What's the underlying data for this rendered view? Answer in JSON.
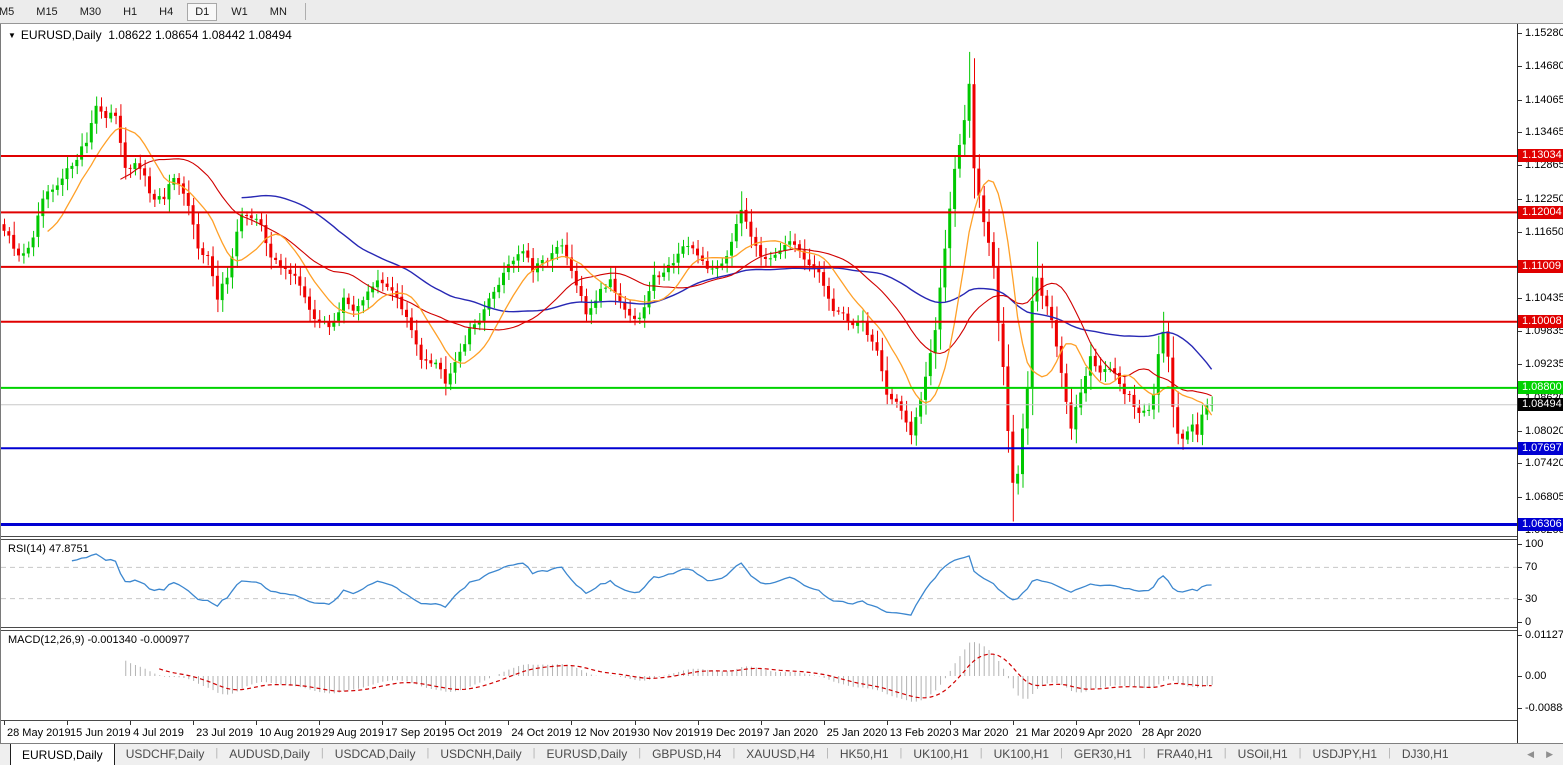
{
  "toolbar": {
    "timeframes": [
      {
        "label": "M5"
      },
      {
        "label": "M15"
      },
      {
        "label": "M30"
      },
      {
        "label": "H1"
      },
      {
        "label": "H4"
      },
      {
        "label": "D1"
      },
      {
        "label": "W1"
      },
      {
        "label": "MN"
      }
    ],
    "active_timeframe": "D1"
  },
  "chart": {
    "title": {
      "dropdown_icon": "▼",
      "symbol": "EURUSD,Daily",
      "ohlc_text": "1.08622 1.08654 1.08442 1.08494"
    },
    "indicators": {
      "rsi_label": "RSI(14) 47.8751",
      "macd_label": "MACD(12,26,9) -0.001340 -0.000977"
    }
  },
  "chart_data": {
    "type": "candlestick",
    "symbol": "EURUSD",
    "timeframe": "Daily",
    "ohlc_display": {
      "open": 1.08622,
      "high": 1.08654,
      "low": 1.08442,
      "close": 1.08494
    },
    "n_candles": 250,
    "ylim": [
      1.06096,
      1.15444
    ],
    "close_anchors": [
      [
        0,
        1.1167
      ],
      [
        3,
        1.1118
      ],
      [
        6,
        1.115
      ],
      [
        8,
        1.1225
      ],
      [
        11,
        1.1245
      ],
      [
        14,
        1.129
      ],
      [
        17,
        1.133
      ],
      [
        19,
        1.14
      ],
      [
        21,
        1.137
      ],
      [
        23,
        1.138
      ],
      [
        25,
        1.1285
      ],
      [
        28,
        1.1282
      ],
      [
        31,
        1.1218
      ],
      [
        33,
        1.123
      ],
      [
        35,
        1.1262
      ],
      [
        38,
        1.121
      ],
      [
        40,
        1.114
      ],
      [
        42,
        1.112
      ],
      [
        44,
        1.104
      ],
      [
        46,
        1.1088
      ],
      [
        49,
        1.12
      ],
      [
        51,
        1.1185
      ],
      [
        53,
        1.118
      ],
      [
        55,
        1.112
      ],
      [
        57,
        1.1098
      ],
      [
        60,
        1.109
      ],
      [
        62,
        1.104
      ],
      [
        64,
        1.1008
      ],
      [
        67,
        1.0992
      ],
      [
        70,
        1.1038
      ],
      [
        72,
        1.1025
      ],
      [
        74,
        1.1042
      ],
      [
        77,
        1.1072
      ],
      [
        80,
        1.1062
      ],
      [
        83,
        1.1005
      ],
      [
        86,
        1.0938
      ],
      [
        89,
        1.0928
      ],
      [
        91,
        1.0895
      ],
      [
        93,
        1.0932
      ],
      [
        96,
        1.0982
      ],
      [
        100,
        1.1038
      ],
      [
        104,
        1.1108
      ],
      [
        107,
        1.1132
      ],
      [
        109,
        1.1092
      ],
      [
        112,
        1.1118
      ],
      [
        115,
        1.1138
      ],
      [
        118,
        1.1068
      ],
      [
        120,
        1.1015
      ],
      [
        123,
        1.1058
      ],
      [
        125,
        1.1078
      ],
      [
        128,
        1.1022
      ],
      [
        131,
        1.1002
      ],
      [
        134,
        1.1082
      ],
      [
        137,
        1.1102
      ],
      [
        140,
        1.1138
      ],
      [
        143,
        1.1122
      ],
      [
        146,
        1.1092
      ],
      [
        149,
        1.1122
      ],
      [
        152,
        1.1212
      ],
      [
        154,
        1.1162
      ],
      [
        157,
        1.1108
      ],
      [
        160,
        1.1138
      ],
      [
        162,
        1.1152
      ],
      [
        165,
        1.1108
      ],
      [
        168,
        1.1088
      ],
      [
        171,
        1.1022
      ],
      [
        174,
        1.1002
      ],
      [
        177,
        1.0998
      ],
      [
        180,
        1.0948
      ],
      [
        182,
        1.0872
      ],
      [
        185,
        1.0842
      ],
      [
        187,
        1.0792
      ],
      [
        189,
        1.0852
      ],
      [
        192,
        1.0992
      ],
      [
        194,
        1.1138
      ],
      [
        196,
        1.1282
      ],
      [
        198,
        1.1362
      ],
      [
        199,
        1.1438
      ],
      [
        200,
        1.1282
      ],
      [
        202,
        1.1188
      ],
      [
        204,
        1.1102
      ],
      [
        205,
        1.0998
      ],
      [
        206,
        1.0922
      ],
      [
        207,
        1.0802
      ],
      [
        208,
        1.0702
      ],
      [
        209,
        1.0722
      ],
      [
        210,
        1.0802
      ],
      [
        211,
        1.0882
      ],
      [
        212,
        1.1032
      ],
      [
        213,
        1.1082
      ],
      [
        214,
        1.1048
      ],
      [
        216,
        1.1002
      ],
      [
        217,
        1.0962
      ],
      [
        219,
        1.0862
      ],
      [
        220,
        1.0812
      ],
      [
        222,
        1.0872
      ],
      [
        224,
        1.0932
      ],
      [
        226,
        1.0912
      ],
      [
        228,
        1.0916
      ],
      [
        230,
        1.0882
      ],
      [
        232,
        1.0866
      ],
      [
        234,
        1.0832
      ],
      [
        236,
        1.0846
      ],
      [
        237,
        1.0872
      ],
      [
        238,
        1.0946
      ],
      [
        239,
        1.0982
      ],
      [
        240,
        1.0932
      ],
      [
        241,
        1.0842
      ],
      [
        242,
        1.0796
      ],
      [
        243,
        1.0786
      ],
      [
        244,
        1.0808
      ],
      [
        245,
        1.0818
      ],
      [
        246,
        1.08
      ],
      [
        247,
        1.0828
      ],
      [
        248,
        1.0846
      ],
      [
        249,
        1.08494
      ]
    ],
    "wick_overrides": [
      [
        19,
        "h",
        1.1412
      ],
      [
        91,
        "l",
        1.0879
      ],
      [
        152,
        "h",
        1.1239
      ],
      [
        187,
        "l",
        1.0777
      ],
      [
        199,
        "h",
        1.14935
      ],
      [
        208,
        "l",
        1.0636
      ],
      [
        213,
        "h",
        1.1147
      ],
      [
        239,
        "h",
        1.1019
      ],
      [
        243,
        "l",
        1.0767
      ]
    ],
    "ma_periods": {
      "fast": 10,
      "mid": 25,
      "slow": 50
    },
    "hlines": [
      {
        "price": 1.13034,
        "label": "1.13034",
        "color": "#e00000",
        "width": 2
      },
      {
        "price": 1.12004,
        "label": "1.12004",
        "color": "#e00000",
        "width": 2
      },
      {
        "price": 1.11009,
        "label": "1.11009",
        "color": "#e00000",
        "width": 2
      },
      {
        "price": 1.10008,
        "label": "1.10008",
        "color": "#e00000",
        "width": 2
      },
      {
        "price": 1.088,
        "label": "1.08800",
        "color": "#00d200",
        "width": 2
      },
      {
        "price": 1.07697,
        "label": "1.07697",
        "color": "#0000d2",
        "width": 2
      },
      {
        "price": 1.06306,
        "label": "1.06306",
        "color": "#0000d2",
        "width": 3
      }
    ],
    "bid_line": {
      "price": 1.08494,
      "label": "1.08494",
      "line_color": "#c8c8c8",
      "label_bg": "#000000"
    },
    "price_axis_ticks": [
      "1.15280",
      "1.14680",
      "1.14065",
      "1.13465",
      "1.12865",
      "1.12250",
      "1.11650",
      "1.10435",
      "1.09835",
      "1.09235",
      "1.08620",
      "1.08020",
      "1.07420",
      "1.06805",
      "1.06205"
    ],
    "x_tick_interval": 13,
    "x_tick_labels": [
      "28 May 2019",
      "15 Jun 2019",
      "4 Jul 2019",
      "23 Jul 2019",
      "10 Aug 2019",
      "29 Aug 2019",
      "17 Sep 2019",
      "5 Oct 2019",
      "24 Oct 2019",
      "12 Nov 2019",
      "30 Nov 2019",
      "19 Dec 2019",
      "7 Jan 2020",
      "25 Jan 2020",
      "13 Feb 2020",
      "3 Mar 2020",
      "21 Mar 2020",
      "9 Apr 2020",
      "28 Apr 2020"
    ],
    "rsi": {
      "period": 14,
      "current": 47.8751,
      "levels": [
        70,
        30
      ],
      "range": [
        0,
        100
      ],
      "axis_ticks": [
        {
          "value": 100,
          "label": "100"
        },
        {
          "value": 70,
          "label": "70"
        },
        {
          "value": 30,
          "label": "30"
        },
        {
          "value": 0,
          "label": "0"
        }
      ]
    },
    "macd": {
      "fast": 12,
      "slow": 26,
      "signal": 9,
      "current_main": -0.00134,
      "current_signal": -0.000977,
      "axis_ticks": [
        {
          "value": 0.011277,
          "label": "0.011277"
        },
        {
          "value": 0,
          "label": "0.00"
        },
        {
          "value": -0.008845,
          "label": "-0.008845"
        }
      ]
    },
    "colors": {
      "bull": "#00c800",
      "bear": "#ee0000",
      "ma_fast": "#ffa028",
      "ma_mid": "#d00000",
      "ma_slow": "#2828b4",
      "rsi_line": "#3c87cf",
      "level_dash": "#c8c8c8",
      "macd_hist": "#b2b2b2",
      "macd_signal": "#d00000"
    }
  },
  "tabs": {
    "items": [
      {
        "label": "EURUSD,Daily",
        "active": true
      },
      {
        "label": "USDCHF,Daily",
        "active": false
      },
      {
        "label": "AUDUSD,Daily",
        "active": false
      },
      {
        "label": "USDCAD,Daily",
        "active": false
      },
      {
        "label": "USDCNH,Daily",
        "active": false
      },
      {
        "label": "EURUSD,Daily",
        "active": false
      },
      {
        "label": "GBPUSD,H4",
        "active": false
      },
      {
        "label": "XAUUSD,H4",
        "active": false
      },
      {
        "label": "HK50,H1",
        "active": false
      },
      {
        "label": "UK100,H1",
        "active": false
      },
      {
        "label": "UK100,H1",
        "active": false
      },
      {
        "label": "GER30,H1",
        "active": false
      },
      {
        "label": "FRA40,H1",
        "active": false
      },
      {
        "label": "USOil,H1",
        "active": false
      },
      {
        "label": "USDJPY,H1",
        "active": false
      },
      {
        "label": "DJ30,H1",
        "active": false
      }
    ],
    "nav": {
      "prev_icon": "◀",
      "next_icon": "▶"
    }
  }
}
